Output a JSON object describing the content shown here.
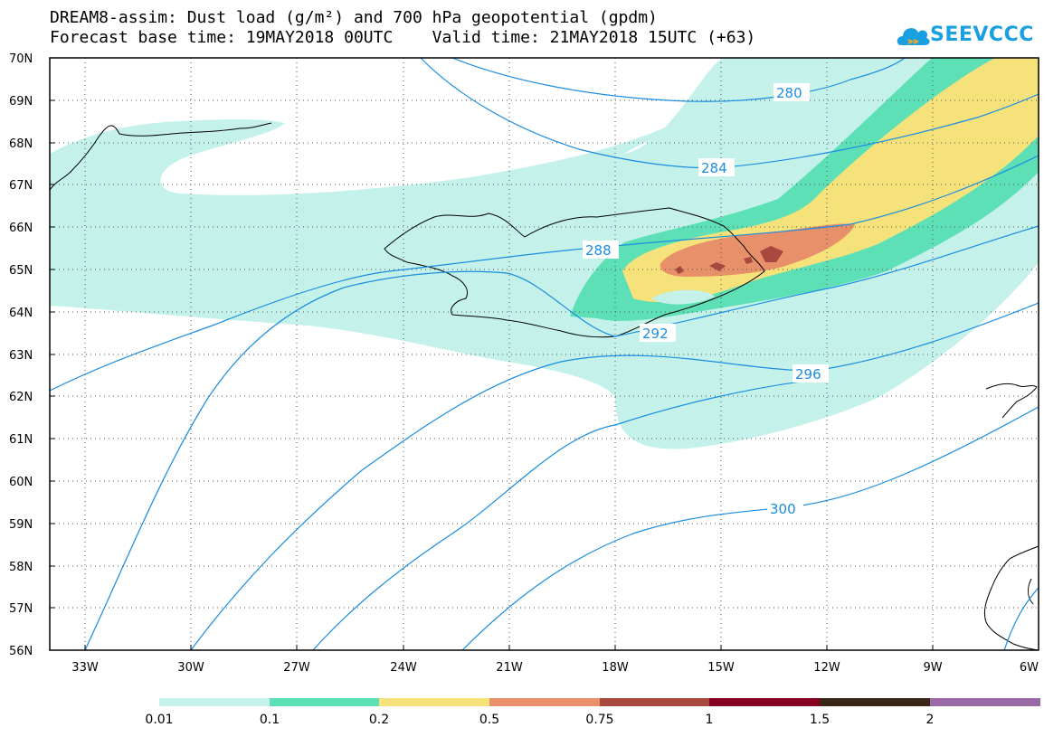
{
  "title_line1": "DREAM8-assim: Dust load (g/m²) and 700 hPa geopotential (gpdm)",
  "title_line2": "Forecast base time: 19MAY2018 00UTC    Valid time: 21MAY2018 15UTC (+63)",
  "logo_text": "SEEVCCC",
  "lat_labels": [
    "70N",
    "69N",
    "68N",
    "67N",
    "66N",
    "65N",
    "64N",
    "63N",
    "62N",
    "61N",
    "60N",
    "59N",
    "58N",
    "57N",
    "56N"
  ],
  "lon_labels": [
    "33W",
    "30W",
    "27W",
    "24W",
    "21W",
    "18W",
    "15W",
    "12W",
    "9W",
    "6W"
  ],
  "contour_labels": [
    "280",
    "284",
    "288",
    "292",
    "296",
    "300"
  ],
  "colorbar": {
    "colors": [
      "#c4f2ea",
      "#5ee0b6",
      "#f6e27a",
      "#e8906a",
      "#a8483e",
      "#860022",
      "#3a2616",
      "#9a6aa6"
    ],
    "labels": [
      "0.01",
      "0.1",
      "0.2",
      "0.5",
      "0.75",
      "1",
      "1.5",
      "2"
    ]
  }
}
